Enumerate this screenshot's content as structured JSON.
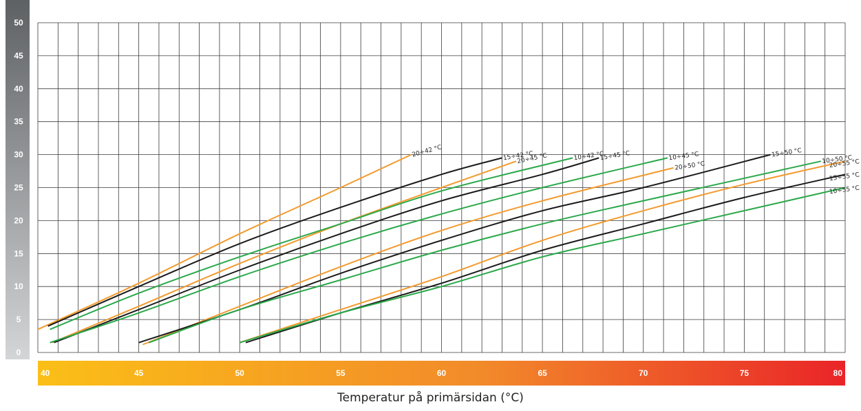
{
  "chart_data": {
    "type": "line",
    "title": "",
    "xlabel": "Temperatur på primärsidan (°C)",
    "ylabel": "",
    "xlim": [
      40,
      80
    ],
    "ylim": [
      0,
      50
    ],
    "x_ticks": [
      40,
      45,
      50,
      55,
      60,
      65,
      70,
      75,
      80
    ],
    "y_ticks": [
      0,
      5,
      10,
      15,
      20,
      25,
      30,
      35,
      40,
      45,
      50
    ],
    "grid": true,
    "legend": "inline labels at line ends",
    "colors": {
      "orange": "#f39a2d",
      "black": "#1a1a1a",
      "green": "#2aa84a"
    },
    "series": [
      {
        "name": "20÷42 °C",
        "color": "orange",
        "points": [
          [
            40.0,
            3.5
          ],
          [
            45,
            10.5
          ],
          [
            50,
            18.0
          ],
          [
            55,
            25.0
          ],
          [
            58.5,
            30.0
          ]
        ]
      },
      {
        "name": "15÷42 °C",
        "color": "black",
        "points": [
          [
            40.5,
            4.0
          ],
          [
            45,
            10.0
          ],
          [
            50,
            16.5
          ],
          [
            55,
            22.0
          ],
          [
            60,
            27.0
          ],
          [
            63,
            29.5
          ]
        ]
      },
      {
        "name": "20÷45 °C",
        "color": "orange",
        "points": [
          [
            40.7,
            1.5
          ],
          [
            45,
            7.0
          ],
          [
            50,
            13.5
          ],
          [
            55,
            19.5
          ],
          [
            60,
            25.0
          ],
          [
            63.7,
            29.0
          ]
        ]
      },
      {
        "name": "10÷42 °C",
        "color": "green",
        "points": [
          [
            40.6,
            3.5
          ],
          [
            45,
            9.0
          ],
          [
            50,
            14.5
          ],
          [
            55,
            19.5
          ],
          [
            60,
            24.5
          ],
          [
            66.5,
            29.5
          ]
        ]
      },
      {
        "name": "15÷45 °C",
        "color": "black",
        "points": [
          [
            40.8,
            1.5
          ],
          [
            45,
            6.5
          ],
          [
            50,
            12.5
          ],
          [
            55,
            18.0
          ],
          [
            60,
            23.0
          ],
          [
            65,
            27.0
          ],
          [
            67.8,
            29.5
          ]
        ]
      },
      {
        "name": "10÷45 °C",
        "color": "green",
        "points": [
          [
            40.6,
            1.5
          ],
          [
            45,
            6.0
          ],
          [
            50,
            11.5
          ],
          [
            55,
            16.5
          ],
          [
            60,
            21.0
          ],
          [
            65,
            25.0
          ],
          [
            71.2,
            29.5
          ]
        ]
      },
      {
        "name": "20÷50 °C",
        "color": "orange",
        "points": [
          [
            45.2,
            1.2
          ],
          [
            50,
            7.0
          ],
          [
            55,
            13.0
          ],
          [
            60,
            18.5
          ],
          [
            65,
            23.0
          ],
          [
            71.5,
            28.0
          ]
        ]
      },
      {
        "name": "15÷50 °C",
        "color": "black",
        "points": [
          [
            45.0,
            1.5
          ],
          [
            50,
            6.5
          ],
          [
            55,
            12.0
          ],
          [
            60,
            17.0
          ],
          [
            65,
            21.5
          ],
          [
            70,
            25.0
          ],
          [
            76.3,
            30.0
          ]
        ]
      },
      {
        "name": "10÷50 °C",
        "color": "green",
        "points": [
          [
            45.5,
            1.5
          ],
          [
            50,
            6.5
          ],
          [
            55,
            11.0
          ],
          [
            60,
            15.5
          ],
          [
            65,
            19.5
          ],
          [
            70,
            23.0
          ],
          [
            78.8,
            29.0
          ]
        ]
      },
      {
        "name": "20÷55 °C",
        "color": "orange",
        "points": [
          [
            50.0,
            1.5
          ],
          [
            55,
            6.5
          ],
          [
            60,
            11.5
          ],
          [
            65,
            17.0
          ],
          [
            70,
            21.5
          ],
          [
            75,
            25.5
          ],
          [
            80,
            29.0
          ]
        ]
      },
      {
        "name": "15÷55 °C",
        "color": "black",
        "points": [
          [
            50.3,
            1.5
          ],
          [
            55,
            6.0
          ],
          [
            60,
            10.5
          ],
          [
            65,
            15.5
          ],
          [
            70,
            19.5
          ],
          [
            75,
            23.5
          ],
          [
            80,
            27.0
          ]
        ]
      },
      {
        "name": "10÷55 °C",
        "color": "green",
        "points": [
          [
            50.0,
            1.5
          ],
          [
            55,
            6.0
          ],
          [
            60,
            10.0
          ],
          [
            65,
            14.5
          ],
          [
            70,
            18.0
          ],
          [
            75,
            21.5
          ],
          [
            80,
            25.0
          ]
        ]
      }
    ]
  }
}
